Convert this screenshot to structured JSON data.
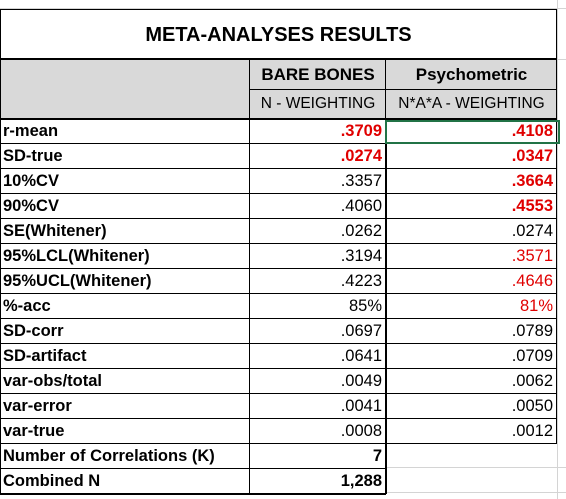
{
  "title": "META-ANALYSES RESULTS",
  "columns": [
    {
      "header_top": "BARE BONES",
      "header_bottom": "N - WEIGHTING"
    },
    {
      "header_top": "Psychometric",
      "header_bottom": "N*A*A - WEIGHTING"
    }
  ],
  "colors": {
    "red": "#e00000",
    "black": "#000000",
    "header_fill": "#d9d9d9",
    "selection": "#217346"
  },
  "rows": [
    {
      "label": "r-mean",
      "bare": ".3709",
      "bare_style": "red-bold",
      "psy": ".4108",
      "psy_style": "red-bold"
    },
    {
      "label": "SD-true",
      "bare": ".0274",
      "bare_style": "red-bold",
      "psy": ".0347",
      "psy_style": "red-bold"
    },
    {
      "label": "10%CV",
      "bare": ".3357",
      "bare_style": "plain",
      "psy": ".3664",
      "psy_style": "red-bold"
    },
    {
      "label": "90%CV",
      "bare": ".4060",
      "bare_style": "plain",
      "psy": ".4553",
      "psy_style": "red-bold"
    },
    {
      "label": "SE(Whitener)",
      "bare": ".0262",
      "bare_style": "plain",
      "psy": ".0274",
      "psy_style": "plain"
    },
    {
      "label": "95%LCL(Whitener)",
      "bare": ".3194",
      "bare_style": "plain",
      "psy": ".3571",
      "psy_style": "red"
    },
    {
      "label": "95%UCL(Whitener)",
      "bare": ".4223",
      "bare_style": "plain",
      "psy": ".4646",
      "psy_style": "red"
    },
    {
      "label": "%-acc",
      "bare": "85%",
      "bare_style": "plain",
      "psy": "81%",
      "psy_style": "red"
    },
    {
      "label": "SD-corr",
      "bare": ".0697",
      "bare_style": "plain",
      "psy": ".0789",
      "psy_style": "plain"
    },
    {
      "label": "SD-artifact",
      "bare": ".0641",
      "bare_style": "plain",
      "psy": ".0709",
      "psy_style": "plain"
    },
    {
      "label": "var-obs/total",
      "bare": ".0049",
      "bare_style": "plain",
      "psy": ".0062",
      "psy_style": "plain"
    },
    {
      "label": "var-error",
      "bare": ".0041",
      "bare_style": "plain",
      "psy": ".0050",
      "psy_style": "plain"
    },
    {
      "label": "var-true",
      "bare": ".0008",
      "bare_style": "plain",
      "psy": ".0012",
      "psy_style": "plain"
    },
    {
      "label": "Number of Correlations (K)",
      "bare": "7",
      "bare_style": "bold",
      "psy": "",
      "psy_style": "none"
    },
    {
      "label": "Combined N",
      "bare": "1,288",
      "bare_style": "bold",
      "psy": "",
      "psy_style": "none"
    }
  ]
}
